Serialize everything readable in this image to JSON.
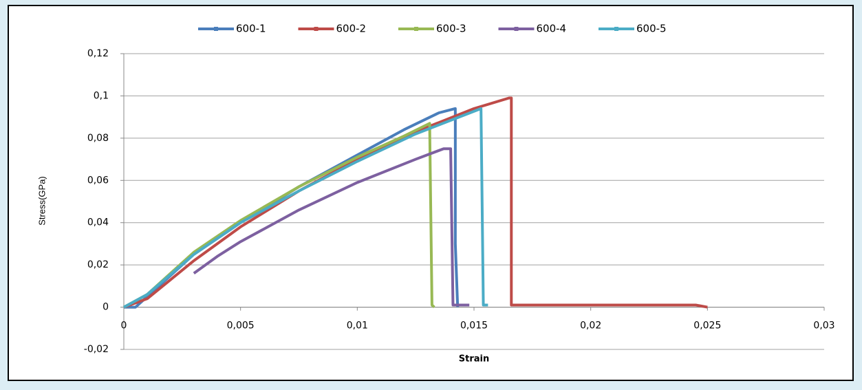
{
  "chart_data": {
    "type": "line",
    "y_label": "Stress(GPa)",
    "x_label": "Strain",
    "xlim": [
      0,
      0.03
    ],
    "ylim": [
      -0.02,
      0.12
    ],
    "xticks": [
      0,
      {
        "value": 0.005,
        "label": "0,005"
      },
      {
        "value": 0.01,
        "label": "0,01"
      },
      {
        "value": 0.015,
        "label": "0,015"
      },
      {
        "value": 0.02,
        "label": "0,02"
      },
      {
        "value": 0.025,
        "label": "0,025"
      },
      {
        "value": 0.03,
        "label": "0,03"
      }
    ],
    "yticks": [
      {
        "value": -0.02,
        "label": "-0,02"
      },
      0,
      {
        "value": 0.02,
        "label": "0,02"
      },
      {
        "value": 0.04,
        "label": "0,04"
      },
      {
        "value": 0.06,
        "label": "0,06"
      },
      {
        "value": 0.08,
        "label": "0,08"
      },
      {
        "value": 0.1,
        "label": "0,1"
      },
      {
        "value": 0.12,
        "label": "0,12"
      }
    ],
    "grid": true,
    "legend": "top",
    "series": [
      {
        "name": "600-1",
        "color": "#4a7ebb",
        "x": [
          0,
          0.0005,
          0.001,
          0.002,
          0.003,
          0.005,
          0.0075,
          0.01,
          0.012,
          0.0135,
          0.0142,
          0.0142,
          0.0143
        ],
        "values": [
          0,
          0,
          0.005,
          0.015,
          0.025,
          0.04,
          0.057,
          0.072,
          0.084,
          0.092,
          0.094,
          0.03,
          0
        ]
      },
      {
        "name": "600-2",
        "color": "#be4b48",
        "x": [
          0,
          0.001,
          0.002,
          0.003,
          0.005,
          0.0075,
          0.01,
          0.0125,
          0.015,
          0.0165,
          0.0166,
          0.0166,
          0.0166,
          0.02,
          0.0245,
          0.025
        ],
        "values": [
          0,
          0.004,
          0.013,
          0.022,
          0.038,
          0.055,
          0.07,
          0.083,
          0.094,
          0.099,
          0.099,
          0.055,
          0.001,
          0.001,
          0.001,
          0
        ]
      },
      {
        "name": "600-3",
        "color": "#98b954",
        "x": [
          0,
          0.001,
          0.003,
          0.005,
          0.0075,
          0.01,
          0.012,
          0.0131,
          0.0132,
          0.0133
        ],
        "values": [
          0,
          0.006,
          0.026,
          0.041,
          0.057,
          0.071,
          0.081,
          0.087,
          0.001,
          0
        ]
      },
      {
        "name": "600-4",
        "color": "#7d60a0",
        "x": [
          0.003,
          0.004,
          0.005,
          0.0075,
          0.01,
          0.0125,
          0.0137,
          0.014,
          0.0141,
          0.0148
        ],
        "values": [
          0.016,
          0.024,
          0.031,
          0.046,
          0.059,
          0.07,
          0.075,
          0.075,
          0.001,
          0.001
        ]
      },
      {
        "name": "600-5",
        "color": "#4bacc6",
        "x": [
          0,
          0.001,
          0.003,
          0.005,
          0.0075,
          0.01,
          0.0125,
          0.0153,
          0.0154,
          0.0156
        ],
        "values": [
          0,
          0.006,
          0.025,
          0.04,
          0.055,
          0.069,
          0.082,
          0.094,
          0.001,
          0.001
        ]
      }
    ]
  }
}
